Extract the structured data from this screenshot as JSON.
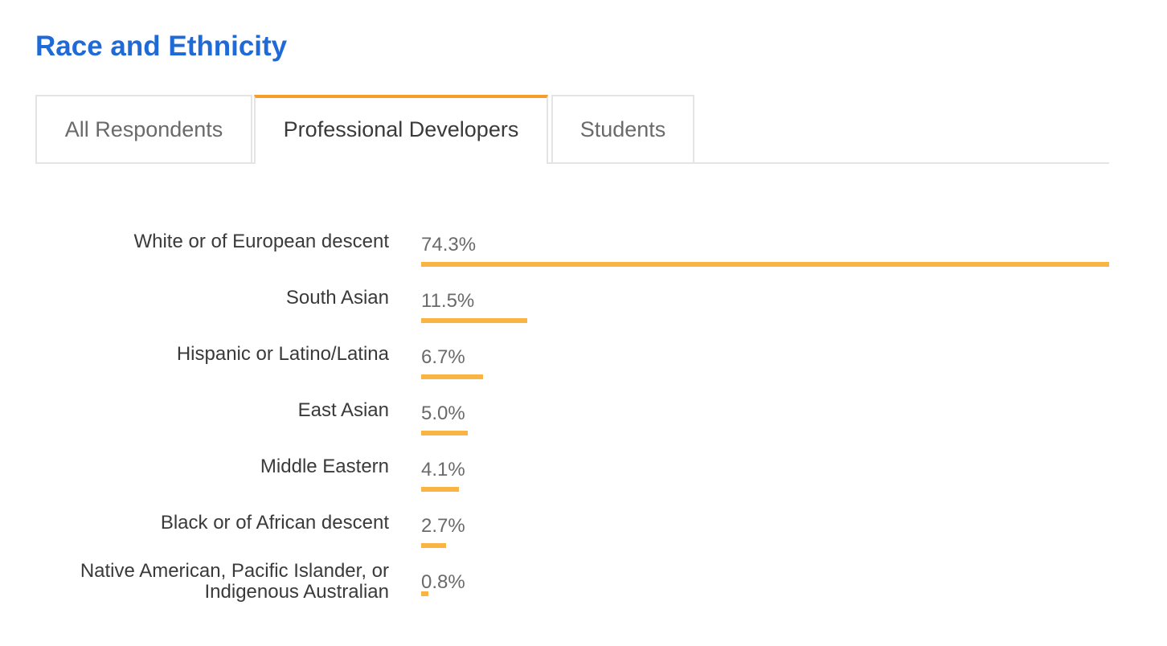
{
  "section": {
    "title": "Race and Ethnicity"
  },
  "tabs": [
    {
      "label": "All Respondents",
      "active": false
    },
    {
      "label": "Professional Developers",
      "active": true
    },
    {
      "label": "Students",
      "active": false
    }
  ],
  "colors": {
    "title": "#1f6ad6",
    "active_tab_accent": "#f59c2a",
    "bar": "#f9b444"
  },
  "chart_data": {
    "type": "bar",
    "orientation": "horizontal",
    "categories": [
      "White or of European descent",
      "South Asian",
      "Hispanic or Latino/Latina",
      "East Asian",
      "Middle Eastern",
      "Black or of African descent",
      "Native American, Pacific Islander, or Indigenous Australian"
    ],
    "values": [
      74.3,
      11.5,
      6.7,
      5.0,
      4.1,
      2.7,
      0.8
    ],
    "value_labels": [
      "74.3%",
      "11.5%",
      "6.7%",
      "5.0%",
      "4.1%",
      "2.7%",
      "0.8%"
    ],
    "unit": "%",
    "xlim": [
      0,
      74.3
    ]
  }
}
